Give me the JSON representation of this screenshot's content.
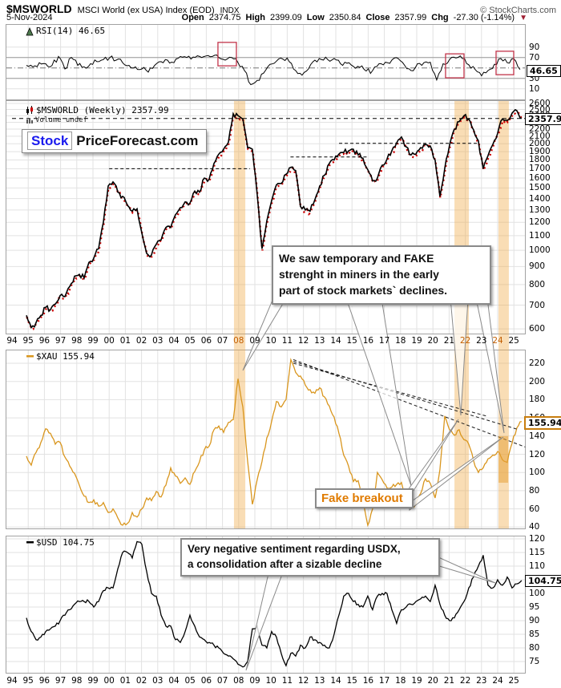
{
  "header": {
    "symbol": "$MSWORLD",
    "name": "MSCI World (ex USA) Index (EOD)",
    "exchange": "INDX",
    "copyright": "© StockCharts.com",
    "date": "5-Nov-2024",
    "quote": {
      "open_label": "Open",
      "open": "2374.75",
      "high_label": "High",
      "high": "2399.09",
      "low_label": "Low",
      "low": "2350.84",
      "close_label": "Close",
      "close": "2357.99",
      "chg_label": "Chg",
      "chg": "-27.30 (-1.14%)",
      "direction_icon": "▼"
    }
  },
  "logo": {
    "part1": "Stock",
    "part2": "PriceForecast.com"
  },
  "annotations": {
    "miners_note_lines": [
      "We saw temporary and FAKE",
      "strenght in miners in the early",
      "part of stock markets` declines."
    ],
    "fake_breakout": "Fake breakout",
    "usd_note_lines": [
      "Very negative sentiment regarding USDX,",
      "a consolidation after a sizable decline"
    ]
  },
  "colors": {
    "xau_line": "#d9961e",
    "usd_line": "#000000",
    "rsi_line": "#000000",
    "price_line": "#000000",
    "price_accent": "#cc0000",
    "band": "#f0ad4e",
    "rsi_box": "#c2344a",
    "grid": "#e2e2e2",
    "annotation_orange": "#e07b00",
    "chg_arrow": "#9e1f32"
  },
  "x_axis": {
    "years": [
      "94",
      "95",
      "96",
      "97",
      "98",
      "99",
      "00",
      "01",
      "02",
      "03",
      "04",
      "05",
      "06",
      "07",
      "08",
      "09",
      "10",
      "11",
      "12",
      "13",
      "14",
      "15",
      "16",
      "17",
      "18",
      "19",
      "20",
      "21",
      "22",
      "23",
      "24",
      "25"
    ],
    "highlighted_years": [
      "08",
      "22",
      "24"
    ]
  },
  "chart_data": [
    {
      "id": "rsi",
      "type": "line",
      "label": "RSI(14)  46.65",
      "indicator": "RSI(14)",
      "value": 46.65,
      "y_ticks": [
        90,
        70,
        30,
        10
      ],
      "overbought": 70,
      "oversold": 30,
      "midline": 50,
      "highlight_boxes": [
        {
          "x1": 2006.72,
          "x2": 2007.86,
          "v1": 99,
          "v2": 54
        },
        {
          "x1": 2020.78,
          "x2": 2021.92,
          "v1": 77,
          "v2": 31
        },
        {
          "x1": 2023.9,
          "x2": 2024.99,
          "v1": 82,
          "v2": 37
        }
      ],
      "series": {
        "t0": 94.89,
        "dt": 0.396,
        "values": [
          55,
          52,
          60,
          58,
          55,
          72,
          48,
          70,
          55,
          52,
          58,
          62,
          66,
          70,
          65,
          60,
          55,
          52,
          48,
          42,
          55,
          62,
          65,
          60,
          72,
          70,
          71,
          72,
          73,
          72,
          70,
          65,
          70,
          60,
          45,
          18,
          26,
          40,
          57,
          63,
          67,
          62,
          45,
          36,
          48,
          65,
          66,
          66,
          68,
          58,
          59,
          53,
          51,
          44,
          45,
          58,
          61,
          65,
          68,
          55,
          45,
          58,
          60,
          61,
          27,
          58,
          66,
          69,
          68,
          56,
          47,
          35,
          45,
          57,
          68,
          60,
          68,
          47
        ]
      }
    },
    {
      "id": "price",
      "type": "candlestick-line",
      "scale": "log",
      "label": "$MSWORLD (Weekly) 2357.99",
      "volume_label": "Volume undef",
      "value": 2357.99,
      "y_ticks": [
        2600,
        2500,
        2400,
        2300,
        2200,
        2100,
        2000,
        1900,
        1800,
        1700,
        1600,
        1500,
        1400,
        1300,
        1200,
        1100,
        1000,
        900,
        800,
        700,
        600
      ],
      "dashed_level": 2357.99,
      "support_lines": [
        {
          "v": 1700,
          "x1": 2000.0,
          "x2": 2008.7
        },
        {
          "v": 1835,
          "x1": 2011.2,
          "x2": 2016.0
        },
        {
          "v": 2005,
          "x1": 2014.2,
          "x2": 2022.8
        }
      ],
      "highlight_bands": [
        {
          "x1": 2007.71,
          "x2": 2008.41
        },
        {
          "x1": 2021.33,
          "x2": 2022.22
        },
        {
          "x1": 2024.05,
          "x2": 2024.69
        }
      ],
      "series": {
        "t0": 94.89,
        "dt": 0.297,
        "values": [
          655,
          605,
          625,
          655,
          690,
          680,
          705,
          745,
          740,
          790,
          845,
          855,
          835,
          925,
          950,
          1010,
          1200,
          1520,
          1560,
          1460,
          1420,
          1340,
          1290,
          1310,
          1120,
          980,
          970,
          1040,
          1070,
          1160,
          1160,
          1260,
          1320,
          1370,
          1360,
          1470,
          1460,
          1600,
          1590,
          1760,
          1870,
          1930,
          2020,
          2430,
          2400,
          2350,
          1950,
          1930,
          1440,
          1010,
          1210,
          1380,
          1530,
          1545,
          1640,
          1715,
          1680,
          1330,
          1300,
          1290,
          1390,
          1520,
          1630,
          1760,
          1800,
          1870,
          1890,
          1910,
          1930,
          1860,
          1820,
          1690,
          1570,
          1600,
          1740,
          1810,
          1910,
          2010,
          2090,
          1960,
          1860,
          1870,
          1950,
          1990,
          1970,
          1800,
          1420,
          1700,
          1980,
          2200,
          2310,
          2400,
          2350,
          2190,
          2040,
          1700,
          1850,
          1990,
          2140,
          2350,
          2330,
          2440,
          2480,
          2358
        ]
      }
    },
    {
      "id": "xau",
      "type": "line",
      "label": "$XAU 155.94",
      "value": 155.94,
      "y_ticks": [
        220,
        200,
        180,
        160,
        140,
        120,
        100,
        80,
        60,
        40
      ],
      "trendlines": [
        {
          "x1": 2011.38,
          "v1": 224,
          "x2": 2025.7,
          "v2": 128
        },
        {
          "x1": 2011.38,
          "v1": 222,
          "x2": 2025.3,
          "v2": 147
        },
        {
          "x1": 2011.38,
          "v1": 220,
          "x2": 2023.3,
          "v2": 162
        }
      ],
      "series": {
        "t0": 94.89,
        "dt": 0.297,
        "values": [
          118,
          108,
          122,
          133,
          148,
          143,
          131,
          133,
          117,
          107,
          99,
          86,
          74,
          67,
          70,
          63,
          67,
          56,
          60,
          50,
          42,
          44,
          56,
          51,
          60,
          72,
          69,
          79,
          73,
          86,
          105,
          96,
          88,
          94,
          87,
          101,
          112,
          125,
          129,
          147,
          151,
          144,
          155,
          158,
          203,
          172,
          112,
          65,
          92,
          112,
          138,
          156,
          178,
          172,
          180,
          224,
          210,
          206,
          196,
          191,
          187,
          193,
          183,
          173,
          161,
          143,
          119,
          107,
          90,
          91,
          68,
          42,
          60,
          100,
          92,
          83,
          84,
          87,
          89,
          68,
          63,
          65,
          77,
          93,
          88,
          72,
          103,
          162,
          147,
          141,
          147,
          136,
          131,
          113,
          100,
          105,
          115,
          119,
          123,
          114,
          111,
          132,
          149,
          156
        ]
      }
    },
    {
      "id": "usd",
      "type": "line",
      "label": "$USD 104.75",
      "value": 104.75,
      "y_ticks": [
        120,
        115,
        110,
        105,
        100,
        95,
        90,
        85,
        80,
        75
      ],
      "series": {
        "t0": 94.89,
        "dt": 0.297,
        "values": [
          91,
          86,
          83,
          84,
          86,
          87,
          88,
          90,
          92,
          94,
          96,
          97,
          97,
          97,
          95,
          97,
          101,
          102,
          102,
          109,
          115,
          115,
          113,
          119,
          118,
          108,
          100,
          99,
          92,
          88,
          88,
          83,
          82,
          86,
          92,
          88,
          84,
          83,
          82,
          81,
          80,
          78,
          77,
          76,
          74,
          73,
          75,
          87,
          88,
          81,
          80,
          86,
          84,
          78,
          73.5,
          78,
          77,
          81,
          80,
          84,
          83,
          82,
          81,
          80,
          85,
          92,
          99,
          100,
          97,
          96,
          95,
          99,
          94,
          99,
          100,
          100,
          94,
          89,
          94,
          95,
          96,
          97,
          98,
          99,
          97,
          103,
          96,
          92,
          90,
          91,
          94,
          97,
          102,
          106,
          110,
          114,
          103,
          102,
          105,
          103,
          106,
          102,
          103.5,
          104.75
        ]
      }
    }
  ]
}
